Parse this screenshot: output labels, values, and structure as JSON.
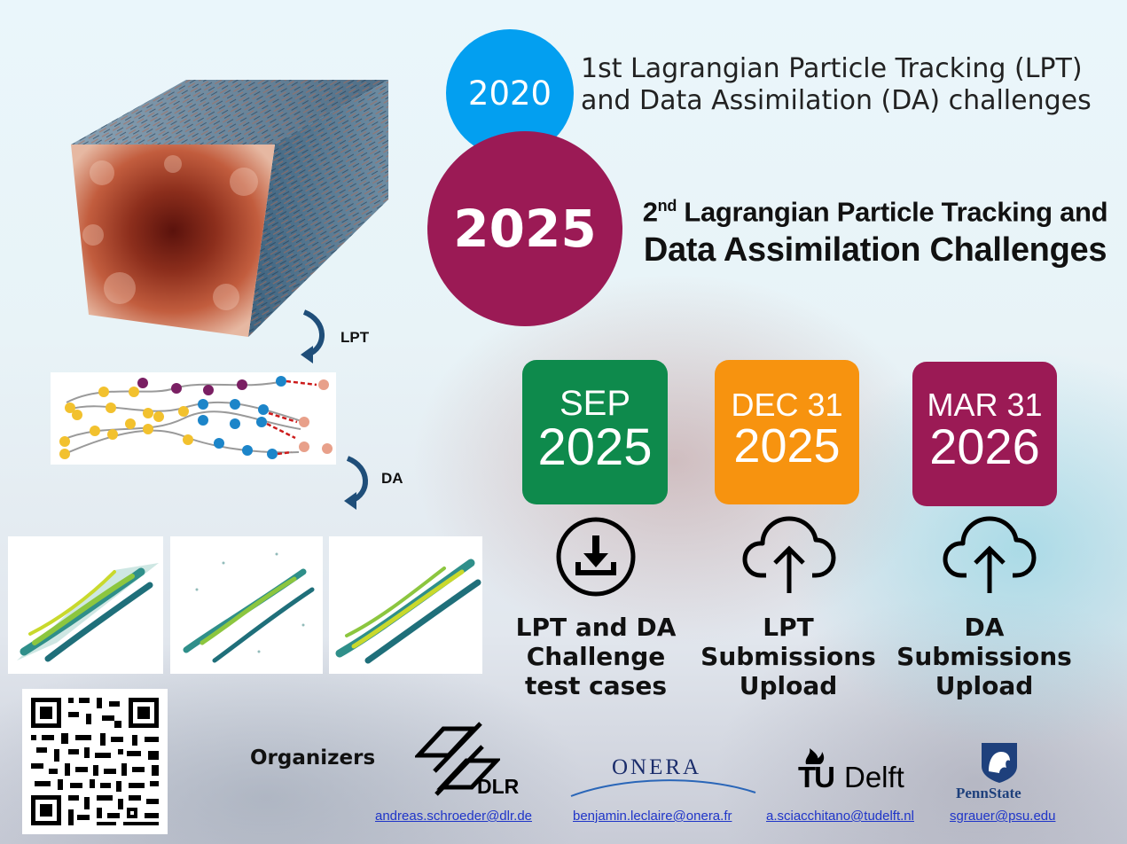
{
  "badge_2020": "2020",
  "line_2020": [
    "1st Lagrangian Particle Tracking (LPT)",
    "and Data Assimilation (DA) challenges"
  ],
  "badge_2025": "2025",
  "title_2025": {
    "prefix": "2",
    "sup": "nd",
    "rest": " Lagrangian Particle Tracking and",
    "line2": "Data Assimilation Challenges"
  },
  "flow_steps": {
    "lpt": "LPT",
    "da": "DA"
  },
  "milestones": [
    {
      "month": "SEP",
      "year": "2025",
      "caption": [
        "LPT and DA",
        "Challenge",
        "test cases"
      ],
      "color": "#0e8a4c",
      "icon": "download-icon"
    },
    {
      "month": "DEC 31",
      "year": "2025",
      "caption": [
        "LPT",
        "Submissions",
        "Upload"
      ],
      "color": "#f7930f",
      "icon": "cloud-upload-icon"
    },
    {
      "month": "MAR 31",
      "year": "2026",
      "caption": [
        "DA",
        "Submissions",
        "Upload"
      ],
      "color": "#9b1a55",
      "icon": "cloud-upload-icon"
    }
  ],
  "organizers_label": "Organizers",
  "logos": {
    "dlr": "DLR",
    "onera": "ONERA",
    "tu": "TU",
    "delft": "Delft",
    "pennstate": "PennState"
  },
  "emails": [
    "andreas.schroeder@dlr.de",
    "benjamin.leclaire@onera.fr",
    "a.sciacchitano@tudelft.nl",
    "sgrauer@psu.edu"
  ],
  "colors": {
    "blue_circle": "#039ff0",
    "magenta_circle": "#9b1a55",
    "green": "#0e8a4c",
    "orange": "#f7930f",
    "maroon": "#9b1a55"
  }
}
